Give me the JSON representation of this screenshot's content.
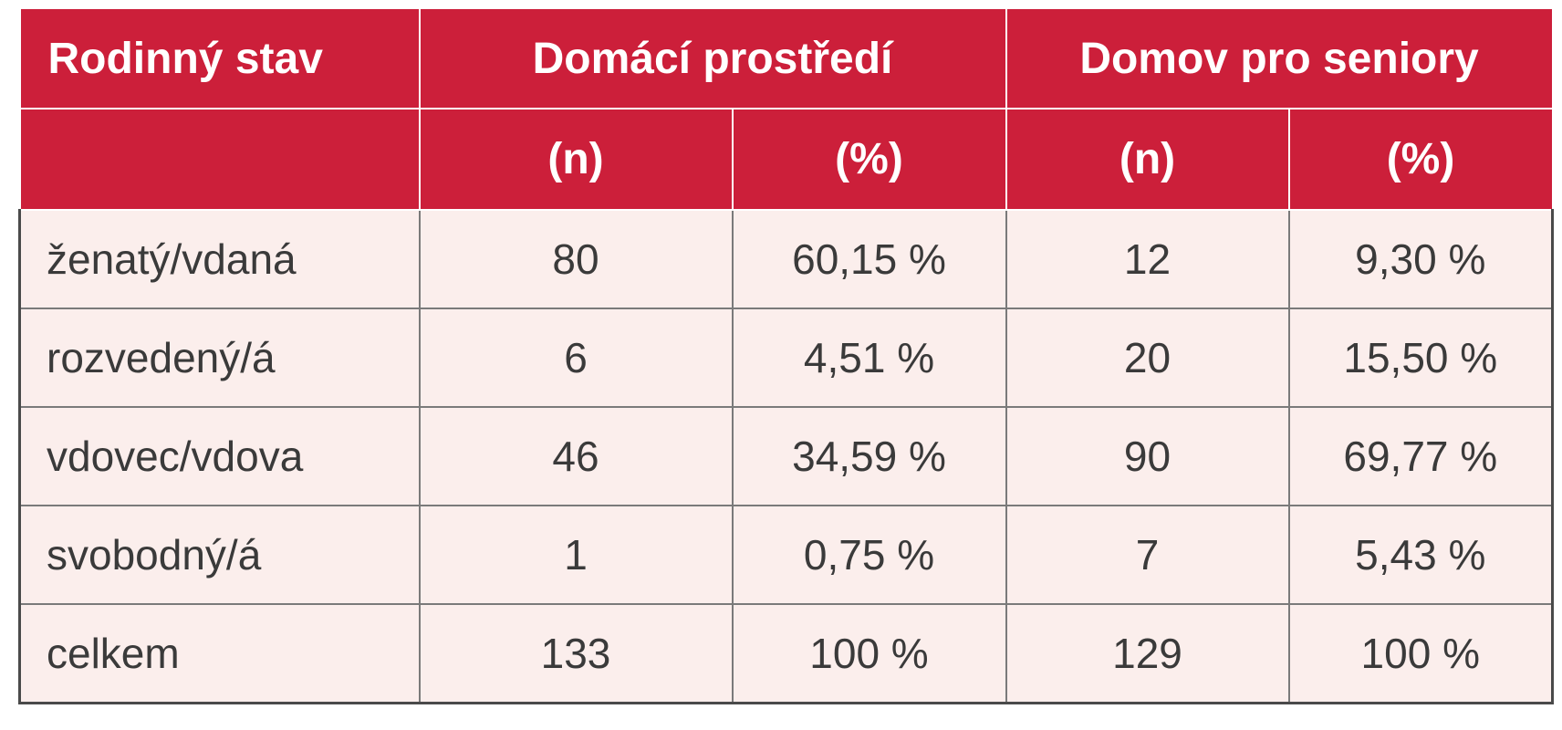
{
  "table": {
    "header_row1": {
      "col0": "Rodinný stav",
      "group1": "Domácí prostředí",
      "group2": "Domov pro seniory"
    },
    "header_row2": {
      "col0": "",
      "g1_n": "(n)",
      "g1_pct": "(%)",
      "g2_n": "(n)",
      "g2_pct": "(%)"
    },
    "rows": [
      {
        "label": "ženatý/vdaná",
        "home_n": "80",
        "home_pct": "60,15 %",
        "senior_n": "12",
        "senior_pct": "9,30 %"
      },
      {
        "label": "rozvedený/á",
        "home_n": "6",
        "home_pct": "4,51 %",
        "senior_n": "20",
        "senior_pct": "15,50 %"
      },
      {
        "label": "vdovec/vdova",
        "home_n": "46",
        "home_pct": "34,59 %",
        "senior_n": "90",
        "senior_pct": "69,77 %"
      },
      {
        "label": "svobodný/á",
        "home_n": "1",
        "home_pct": "0,75 %",
        "senior_n": "7",
        "senior_pct": "5,43 %"
      },
      {
        "label": "celkem",
        "home_n": "133",
        "home_pct": "100 %",
        "senior_n": "129",
        "senior_pct": "100 %"
      }
    ],
    "colors": {
      "header_bg": "#cc1f3a",
      "header_text": "#ffffff",
      "body_bg": "#fbeeec",
      "body_text": "#3a3a3a",
      "grid": "#7a7a7a"
    }
  }
}
